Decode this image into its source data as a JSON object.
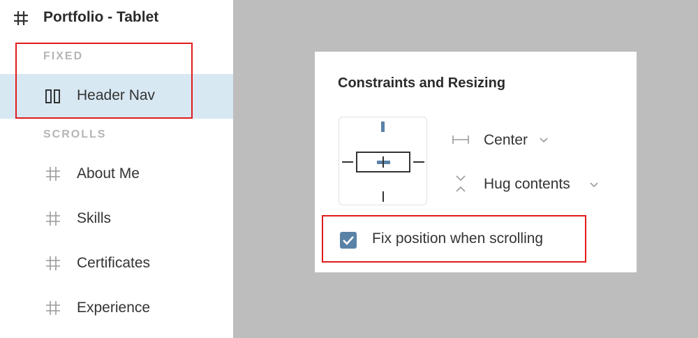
{
  "layers": {
    "frame_title": "Portfolio - Tablet",
    "fixed_label": "FIXED",
    "scrolls_label": "SCROLLS",
    "fixed_items": [
      {
        "label": "Header Nav",
        "icon": "columns-icon",
        "selected": true
      }
    ],
    "scroll_items": [
      {
        "label": "About Me",
        "icon": "hash-icon"
      },
      {
        "label": "Skills",
        "icon": "hash-icon"
      },
      {
        "label": "Certificates",
        "icon": "hash-icon"
      },
      {
        "label": "Experience",
        "icon": "hash-icon"
      }
    ]
  },
  "panel": {
    "title": "Constraints and Resizing",
    "horizontal_constraint": "Center",
    "vertical_constraint": "Hug contents",
    "fix_position_label": "Fix position when scrolling",
    "fix_position_checked": true
  },
  "colors": {
    "selected_row": "#d7e8f3",
    "checkbox": "#5a82a7",
    "highlight": "#e01b1b",
    "canvas": "#bdbdbd"
  }
}
